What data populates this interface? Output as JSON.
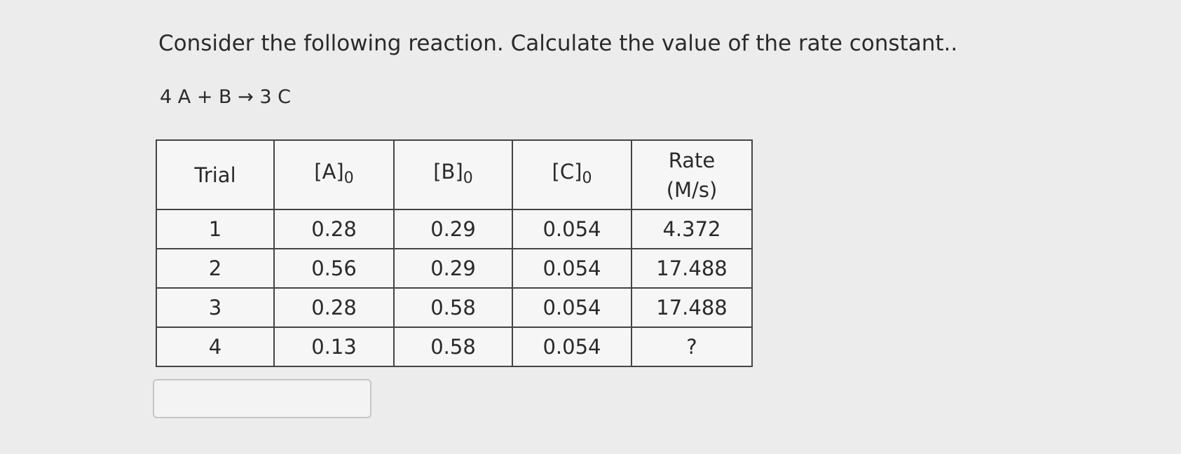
{
  "question": {
    "prompt": "Consider the following reaction. Calculate the value of the rate constant..",
    "equation": "4 A + B → 3 C"
  },
  "table": {
    "columns": [
      {
        "label": "Trial"
      },
      {
        "label": "[A]",
        "sub": "0"
      },
      {
        "label": "[B]",
        "sub": "0"
      },
      {
        "label": "[C]",
        "sub": "0"
      },
      {
        "label": "Rate",
        "unit": "(M/s)"
      }
    ],
    "rows": [
      [
        "1",
        "0.28",
        "0.29",
        "0.054",
        "4.372"
      ],
      [
        "2",
        "0.56",
        "0.29",
        "0.054",
        "17.488"
      ],
      [
        "3",
        "0.28",
        "0.58",
        "0.054",
        "17.488"
      ],
      [
        "4",
        "0.13",
        "0.58",
        "0.054",
        "?"
      ]
    ]
  }
}
